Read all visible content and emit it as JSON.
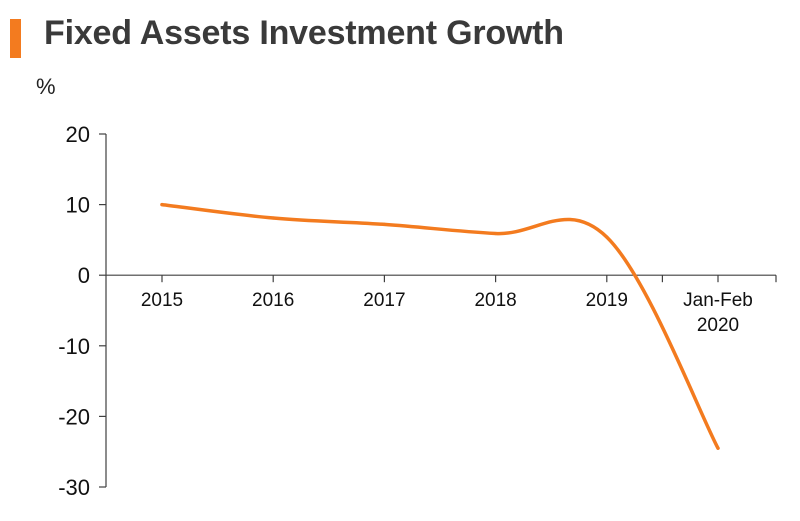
{
  "title": "Fixed Assets Investment Growth",
  "colors": {
    "accent": "#f37b1f",
    "line": "#f37b1f",
    "axis": "#404040"
  },
  "chart_data": {
    "type": "line",
    "title": "Fixed Assets Investment Growth",
    "xlabel": "",
    "ylabel": "%",
    "categories": [
      "2015",
      "2016",
      "2017",
      "2018",
      "2019",
      "Jan-Feb 2020"
    ],
    "ylim": [
      -30,
      20
    ],
    "yticks": [
      20,
      10,
      0,
      -10,
      -20,
      -30
    ],
    "grid": false,
    "legend": "none",
    "series": [
      {
        "values": [
          10.0,
          8.1,
          7.2,
          5.9,
          5.4,
          -24.5
        ]
      }
    ]
  }
}
